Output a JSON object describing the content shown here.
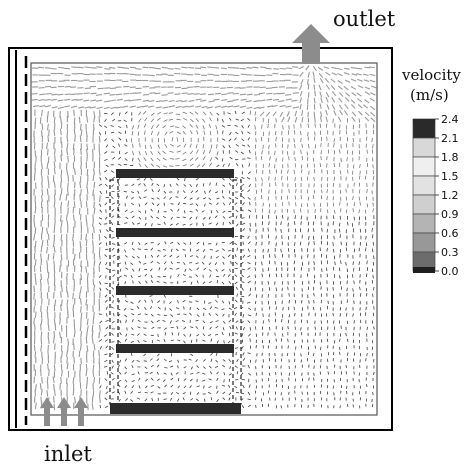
{
  "labels": {
    "outlet": "outlet",
    "inlet": "inlet",
    "legend_title_line1": "velocity",
    "legend_title_line2": "(m/s)"
  },
  "legend": {
    "ticks": [
      "2.4",
      "2.1",
      "1.8",
      "1.5",
      "1.2",
      "0.9",
      "0.6",
      "0.3",
      "0.0"
    ],
    "colors": [
      "#2a2a2a",
      "#d8d8d8",
      "#efefef",
      "#e2e2e2",
      "#cfcfcf",
      "#b4b4b4",
      "#989898",
      "#6c6c6c",
      "#1e1e1e"
    ]
  },
  "colors": {
    "frame": "#000000",
    "vectors": "#4a4a4a",
    "arrows": "#8c8c8c",
    "shelf": "#2b2b2b"
  }
}
